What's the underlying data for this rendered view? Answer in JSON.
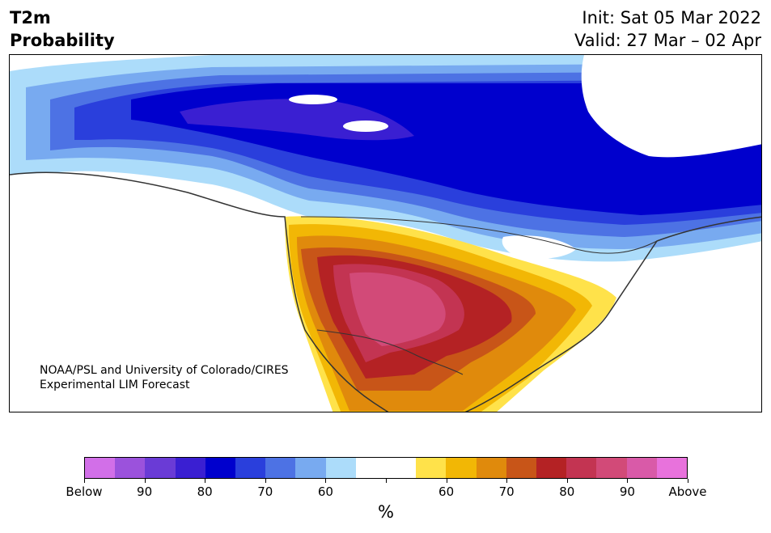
{
  "header": {
    "title_line1": "T2m",
    "title_line2": "Probability",
    "init": "Init: Sat 05 Mar 2022",
    "valid": "Valid: 27 Mar – 02 Apr"
  },
  "credit": {
    "line1": "NOAA/PSL and University of Colorado/CIRES",
    "line2": "Experimental LIM Forecast"
  },
  "colorbar": {
    "colors": [
      "#d26fe8",
      "#9b52dc",
      "#6a3bd6",
      "#3a1fd2",
      "#0000cd",
      "#2a3fdc",
      "#4d72e4",
      "#78aaf0",
      "#acdcfa",
      "#ffffff",
      "#ffffff",
      "#ffe24a",
      "#f2b705",
      "#e08a0c",
      "#c85518",
      "#b42224",
      "#c33452",
      "#d24a78",
      "#d95aa8",
      "#e872dc"
    ],
    "tick_labels": [
      "Below",
      "90",
      "80",
      "70",
      "60",
      "",
      "60",
      "70",
      "80",
      "90",
      "Above"
    ],
    "unit": "%"
  }
}
